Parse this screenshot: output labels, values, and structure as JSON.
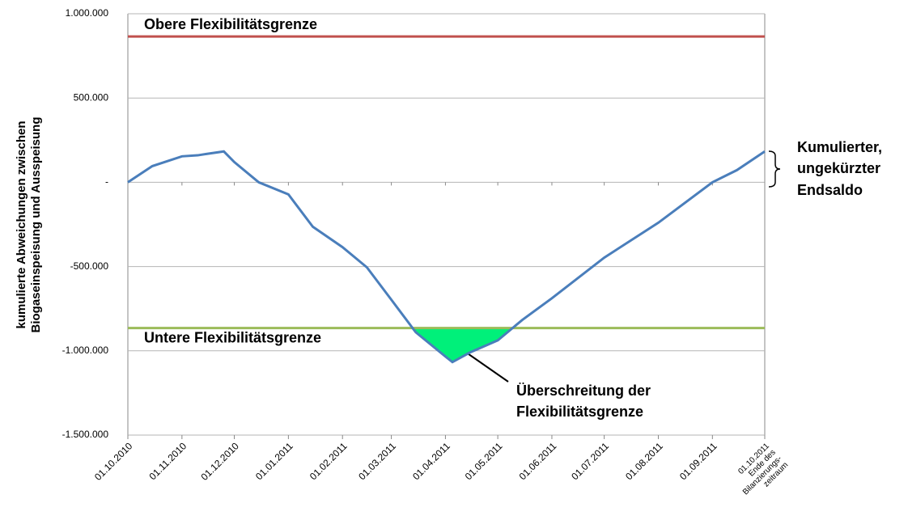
{
  "chart_data": {
    "type": "line",
    "ylabel": [
      "kumulierte Abweichungen zwischen",
      "Biogaseinspeisung und Ausspeisung"
    ],
    "x": [
      "01.10.2010",
      "15.10.2010",
      "01.11.2010",
      "10.11.2010",
      "15.11.2010",
      "25.11.2010",
      "01.12.2010",
      "15.12.2010",
      "01.01.2011",
      "15.01.2011",
      "01.02.2011",
      "15.02.2011",
      "01.03.2011",
      "15.03.2011",
      "01.04.2011",
      "05.04.2011",
      "15.04.2011",
      "01.05.2011",
      "15.05.2011",
      "01.06.2011",
      "01.07.2011",
      "01.08.2011",
      "01.09.2011",
      "15.09.2011",
      "01.10.2011"
    ],
    "series": [
      {
        "color": "#4a7ebb",
        "values": [
          0,
          96000,
          154000,
          160000,
          168000,
          183000,
          120000,
          0,
          -72000,
          -264000,
          -385000,
          -505000,
          -697000,
          -890000,
          -1034000,
          -1067000,
          -1010000,
          -938000,
          -817000,
          -688000,
          -447000,
          -240000,
          0,
          72000,
          183000
        ]
      }
    ],
    "limits": [
      {
        "label": "Obere Flexibilitätsgrenze",
        "value": 865000,
        "color": "#c0504d"
      },
      {
        "label": "Untere Flexibilitätsgrenze",
        "value": -865000,
        "color": "#9bbb59"
      }
    ],
    "exceed_color": "#00f07a",
    "annotations": {
      "exceed": [
        "Überschreitung der",
        "Flexibilitätsgrenze"
      ],
      "endsaldo": [
        "Kumulierter,",
        "ungekürzter",
        "Endsaldo"
      ]
    },
    "ylim": [
      -1500000,
      1000000
    ],
    "yticks": [
      {
        "value": -1500000,
        "label": "-1.500.000"
      },
      {
        "value": -1000000,
        "label": "-1.000.000"
      },
      {
        "value": -500000,
        "label": "-500.000"
      },
      {
        "value": 0,
        "label": "-"
      },
      {
        "value": 500000,
        "label": "500.000"
      },
      {
        "value": 1000000,
        "label": "1.000.000"
      }
    ],
    "xlim": [
      "01.10.2010",
      "01.10.2011"
    ],
    "xticks": [
      "01.10.2010",
      "01.11.2010",
      "01.12.2010",
      "01.01.2011",
      "01.02.2011",
      "01.03.2011",
      "01.04.2011",
      "01.05.2011",
      "01.06.2011",
      "01.07.2011",
      "01.08.2011",
      "01.09.2011",
      {
        "value": "01.10.2011",
        "label": [
          "01.10.2011",
          "Ende des",
          "Bilanzierungs-",
          "zeitraum"
        ]
      }
    ],
    "grid": true
  }
}
